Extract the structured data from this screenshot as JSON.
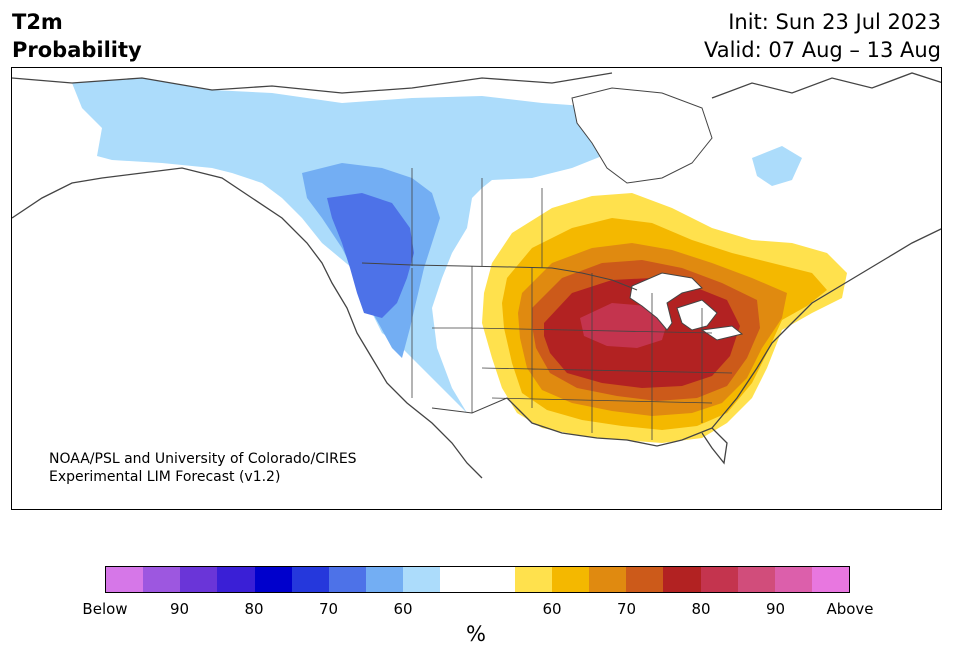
{
  "header": {
    "title_line1": "T2m",
    "title_line2": "Probability",
    "init": "Init: Sun 23 Jul 2023",
    "valid": "Valid: 07 Aug – 13 Aug"
  },
  "credit": {
    "line1": "NOAA/PSL and University of Colorado/CIRES",
    "line2": "Experimental LIM Forecast (v1.2)"
  },
  "colorbar": {
    "colors": [
      "#d677e8",
      "#9d57e0",
      "#6a35d8",
      "#3a1fd6",
      "#0000cc",
      "#2538dc",
      "#4d72e8",
      "#73aef3",
      "#acdcfb",
      "#ffffff",
      "#ffffff",
      "#ffe14d",
      "#f4b800",
      "#e08a10",
      "#cc5a1a",
      "#b22222",
      "#c4344e",
      "#d14d7b",
      "#dc5fab",
      "#e877e0"
    ],
    "tick_labels": [
      "Below",
      "90",
      "80",
      "70",
      "60",
      "60",
      "70",
      "80",
      "90",
      "Above"
    ],
    "unit": "%"
  },
  "map": {
    "land_color": "#ffffff",
    "border_color": "#444444"
  }
}
